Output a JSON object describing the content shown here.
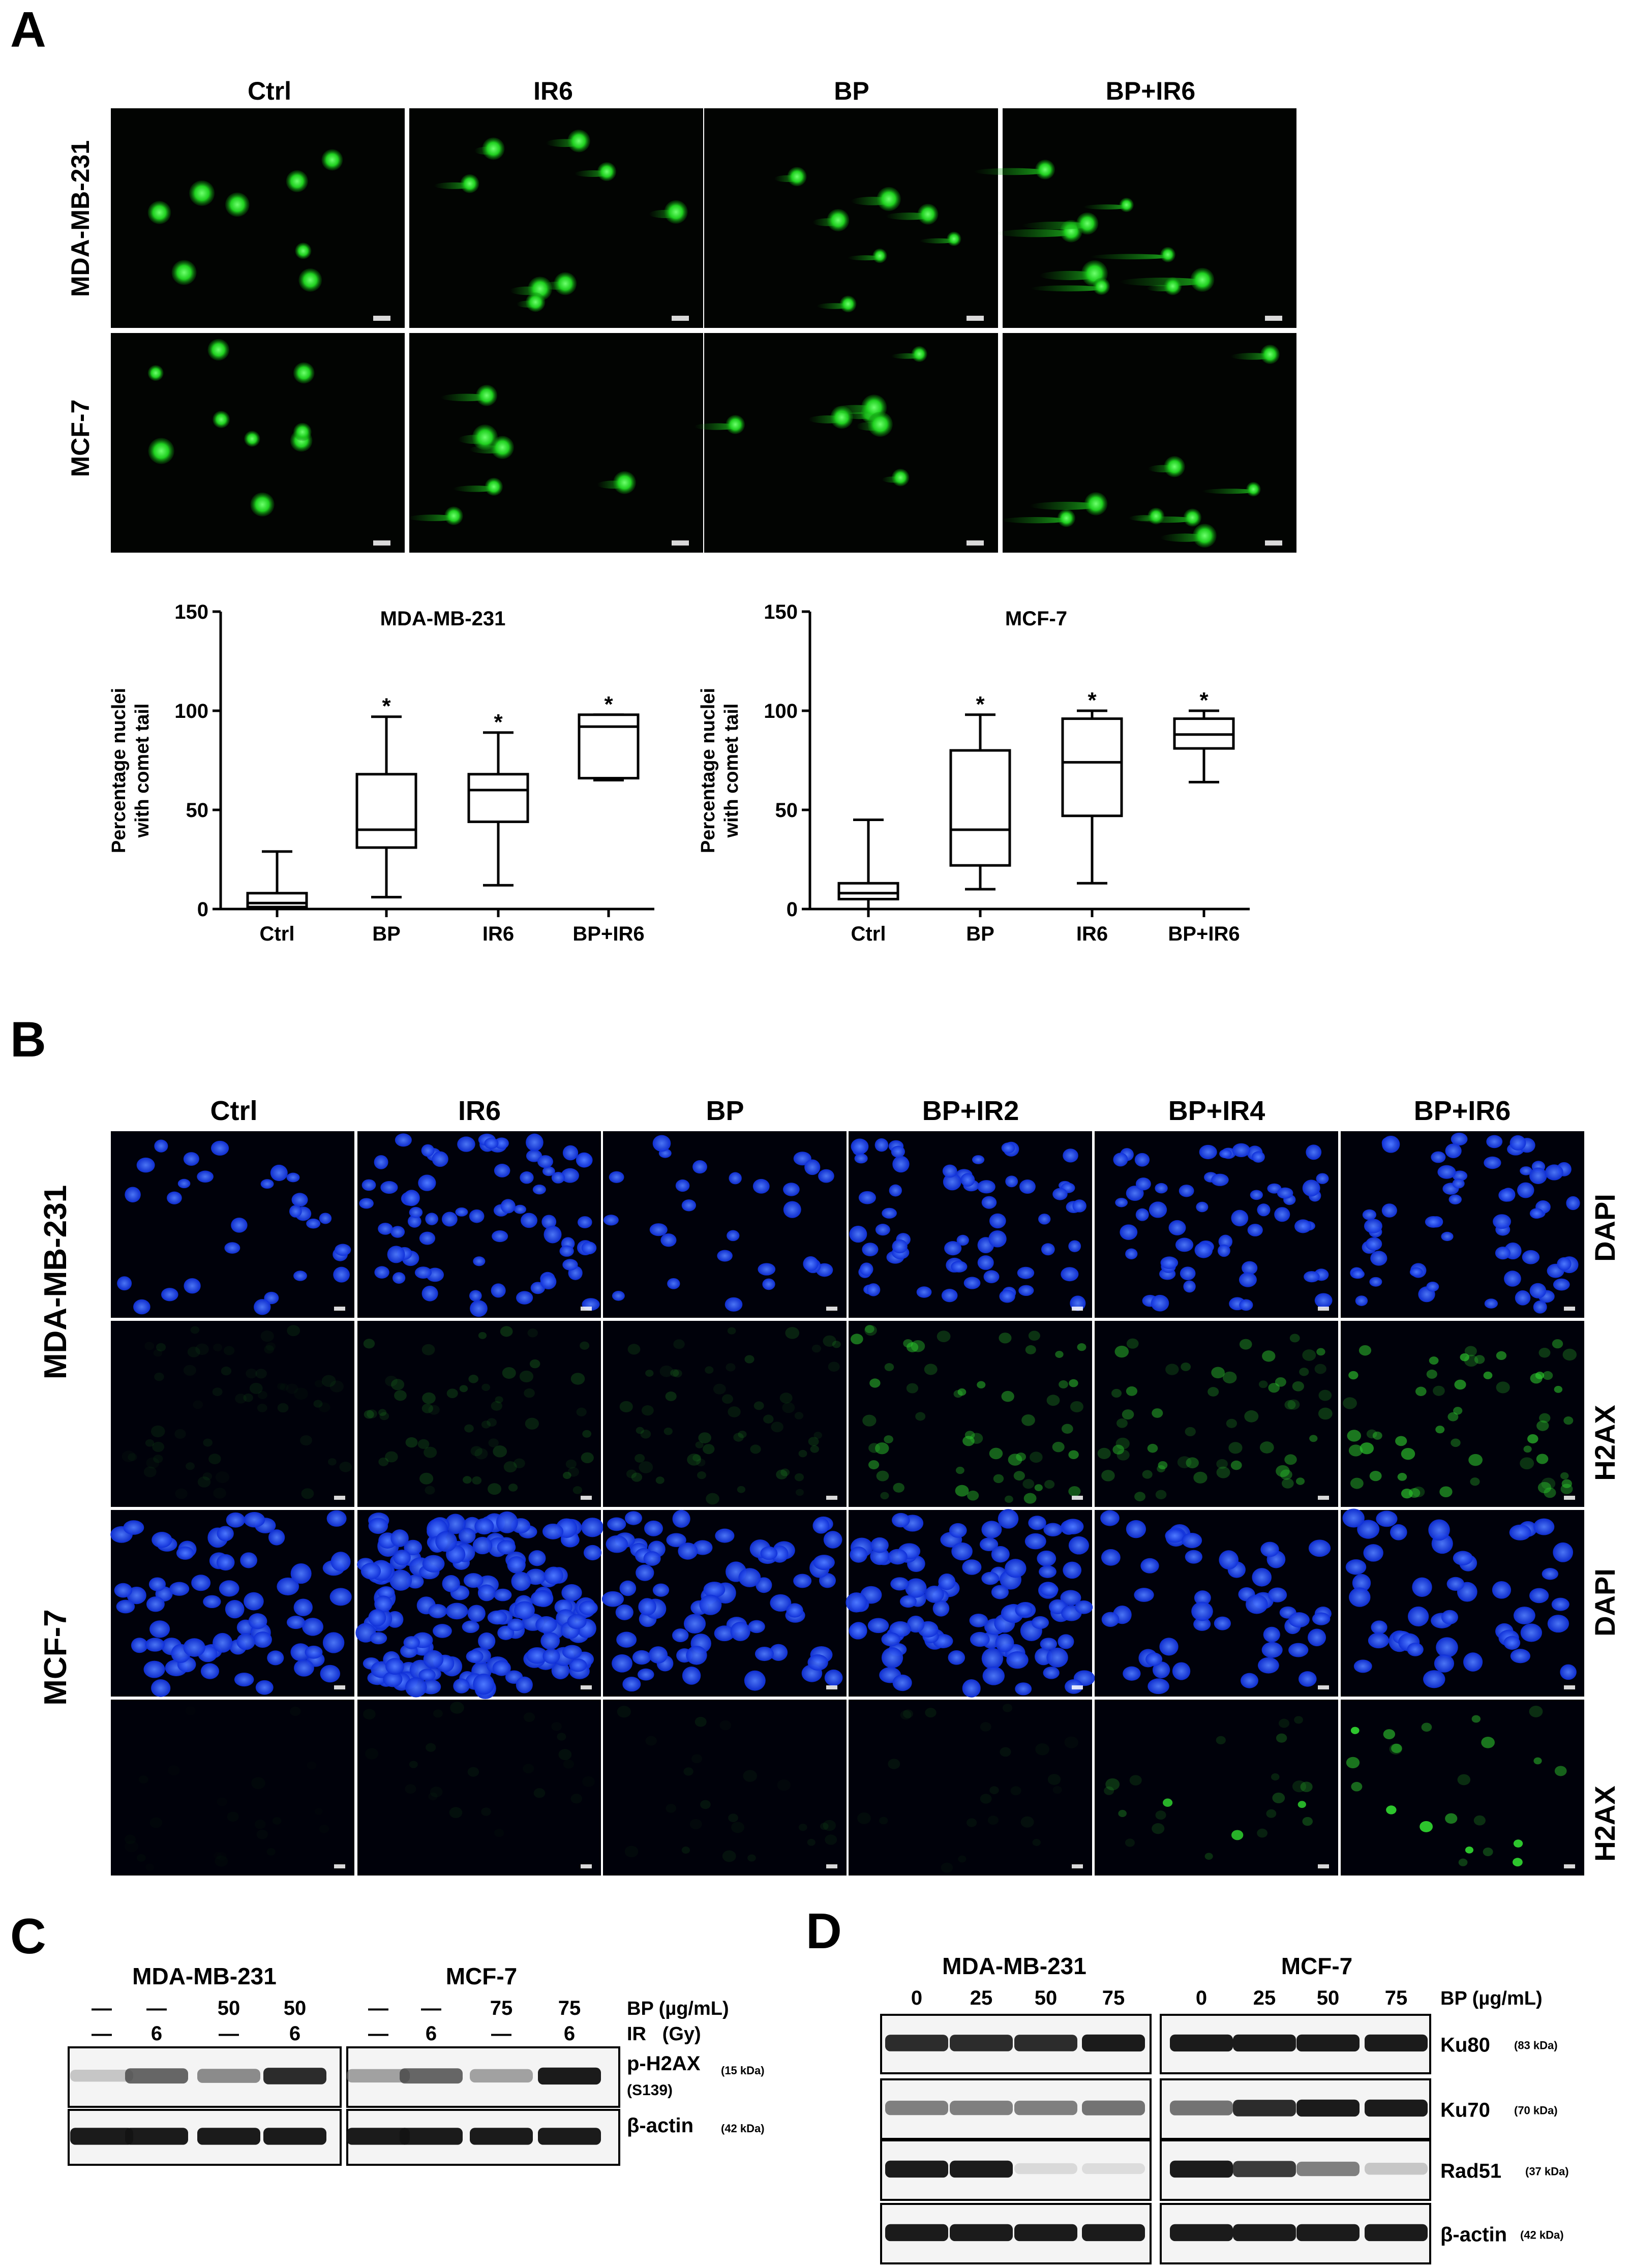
{
  "panelA": {
    "letter": "A",
    "columns": [
      "Ctrl",
      "IR6",
      "BP",
      "BP+IR6"
    ],
    "rows": [
      "MDA-MB-231",
      "MCF-7"
    ],
    "comet_color": "#2ee02e"
  },
  "charts": [
    {
      "title": "MDA-MB-231",
      "ylabel_line1": "Percentage nuclei",
      "ylabel_line2": "with comet tail",
      "yticks": [
        "0",
        "50",
        "100",
        "150"
      ],
      "categories": [
        "Ctrl",
        "BP",
        "IR6",
        "BP+IR6"
      ],
      "marks": [
        "",
        "*",
        "*",
        "*"
      ]
    },
    {
      "title": "MCF-7",
      "ylabel_line1": "Percentage nuclei",
      "ylabel_line2": "with comet tail",
      "yticks": [
        "0",
        "50",
        "100",
        "150"
      ],
      "categories": [
        "Ctrl",
        "BP",
        "IR6",
        "BP+IR6"
      ],
      "marks": [
        "",
        "*",
        "*",
        "*"
      ]
    }
  ],
  "chart_data": [
    {
      "type": "box",
      "title": "MDA-MB-231",
      "ylabel": "Percentage nuclei with comet tail",
      "categories": [
        "Ctrl",
        "BP",
        "IR6",
        "BP+IR6"
      ],
      "ylim": [
        0,
        150
      ],
      "boxes": [
        {
          "min": 0,
          "q1": 1,
          "median": 3,
          "q3": 8,
          "max": 29
        },
        {
          "min": 6,
          "q1": 31,
          "median": 40,
          "q3": 68,
          "max": 97
        },
        {
          "min": 12,
          "q1": 44,
          "median": 60,
          "q3": 68,
          "max": 89
        },
        {
          "min": 65,
          "q1": 66,
          "median": 92,
          "q3": 98,
          "max": 98
        }
      ],
      "significance": [
        "",
        "*",
        "*",
        "*"
      ]
    },
    {
      "type": "box",
      "title": "MCF-7",
      "ylabel": "Percentage nuclei with comet tail",
      "categories": [
        "Ctrl",
        "BP",
        "IR6",
        "BP+IR6"
      ],
      "ylim": [
        0,
        150
      ],
      "boxes": [
        {
          "min": 0,
          "q1": 5,
          "median": 8,
          "q3": 13,
          "max": 45
        },
        {
          "min": 10,
          "q1": 22,
          "median": 40,
          "q3": 80,
          "max": 98
        },
        {
          "min": 13,
          "q1": 47,
          "median": 74,
          "q3": 96,
          "max": 100
        },
        {
          "min": 64,
          "q1": 81,
          "median": 88,
          "q3": 96,
          "max": 100
        }
      ],
      "significance": [
        "",
        "*",
        "*",
        "*"
      ]
    }
  ],
  "panelB": {
    "letter": "B",
    "columns": [
      "Ctrl",
      "IR6",
      "BP",
      "BP+IR2",
      "BP+IR4",
      "BP+IR6"
    ],
    "rows": [
      "MDA-MB-231",
      "MCF-7"
    ],
    "stains": [
      "DAPI",
      "H2AX",
      "DAPI",
      "H2AX"
    ],
    "dapi_color": "#1a48ff",
    "h2ax_color": "#2fd02f"
  },
  "panelC": {
    "letter": "C",
    "cells": [
      "MDA-MB-231",
      "MCF-7"
    ],
    "bp_row": [
      "—",
      "—",
      "50",
      "50",
      "—",
      "—",
      "75",
      "75"
    ],
    "ir_row": [
      "—",
      "6",
      "—",
      "6",
      "—",
      "6",
      "—",
      "6"
    ],
    "bp_label": "BP (µg/mL)",
    "ir_label": "IR   (Gy)",
    "blots": [
      {
        "name": "p-H2AX",
        "extra": "(S139)",
        "kda": "(15 kDa)"
      },
      {
        "name": "β-actin",
        "extra": "",
        "kda": "(42 kDa)"
      }
    ]
  },
  "panelD": {
    "letter": "D",
    "cells": [
      "MDA-MB-231",
      "MCF-7"
    ],
    "doses": [
      "0",
      "25",
      "50",
      "75",
      "0",
      "25",
      "50",
      "75"
    ],
    "bp_label": "BP (µg/mL)",
    "blots": [
      {
        "name": "Ku80",
        "kda": "(83 kDa)"
      },
      {
        "name": "Ku70",
        "kda": "(70 kDa)"
      },
      {
        "name": "Rad51",
        "kda": "(37 kDa)"
      },
      {
        "name": "β-actin",
        "kda": "(42 kDa)"
      }
    ]
  }
}
